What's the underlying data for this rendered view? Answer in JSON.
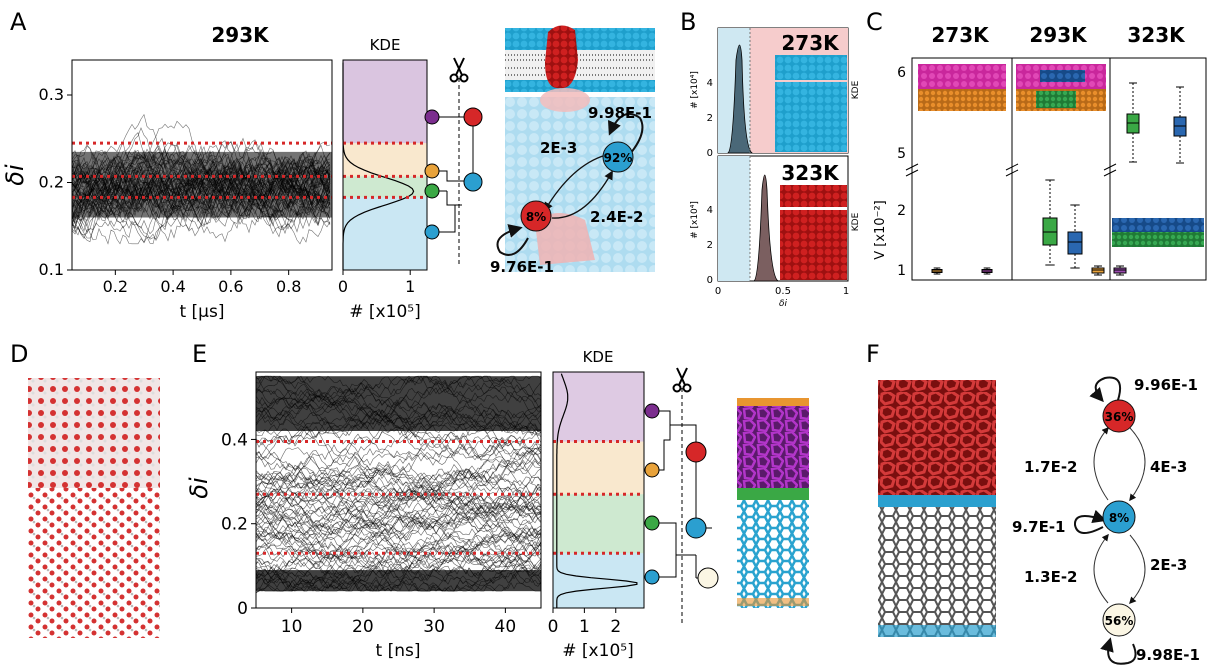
{
  "panel_letters": [
    "A",
    "B",
    "C",
    "D",
    "E",
    "F"
  ],
  "panelA": {
    "title": "293K",
    "ylabel": "δi",
    "xlabel": "t [μs]",
    "yticks": [
      "0.1",
      "0.2",
      "0.3"
    ],
    "xticks": [
      "0.2",
      "0.4",
      "0.6",
      "0.8"
    ],
    "kde_title": "KDE",
    "kde_xlabel": "# [x10⁵]",
    "kde_xticks": [
      "0",
      "1"
    ],
    "thresholds": [
      0.183,
      0.207,
      0.245
    ],
    "network": {
      "states": [
        {
          "label": "92%",
          "color": "#2b9fd0"
        },
        {
          "label": "8%",
          "color": "#d62728"
        }
      ],
      "edges": [
        "9.98E-1",
        "2E-3",
        "2.4E-2",
        "9.76E-1"
      ]
    },
    "colors": {
      "purple": "#7b2d8e",
      "orange": "#e8a23a",
      "green": "#3aa845",
      "blue": "#2b9fd0",
      "red": "#d62728"
    }
  },
  "panelB": {
    "top_label": "273K",
    "bottom_label": "323K",
    "ylabel": "# [x10⁴]",
    "xlabel": "δi",
    "kde_label": "KDE",
    "yticks": [
      "0",
      "2",
      "4"
    ],
    "xticks": [
      "0",
      "0.5",
      "1"
    ]
  },
  "panelC": {
    "titles": [
      "273K",
      "293K",
      "323K"
    ],
    "ylabel": "V [x10⁻²]",
    "yticks": [
      "1",
      "2",
      "5",
      "6"
    ]
  },
  "panelE": {
    "ylabel": "δi",
    "xlabel": "t [ns]",
    "yticks": [
      "0",
      "0.2",
      "0.4"
    ],
    "xticks": [
      "10",
      "20",
      "30",
      "40"
    ],
    "kde_title": "KDE",
    "kde_xlabel": "# [x10⁵]",
    "kde_xticks": [
      "0",
      "1",
      "2"
    ],
    "thresholds": [
      0.13,
      0.27,
      0.395
    ]
  },
  "panelF": {
    "states": [
      {
        "label": "36%",
        "color": "#d62728"
      },
      {
        "label": "8%",
        "color": "#2b9fd0"
      },
      {
        "label": "56%",
        "color": "#fbf6e4"
      }
    ],
    "edges": [
      "9.96E-1",
      "1.7E-2",
      "4E-3",
      "9.7E-1",
      "1.3E-2",
      "2E-3",
      "9.98E-1"
    ]
  }
}
